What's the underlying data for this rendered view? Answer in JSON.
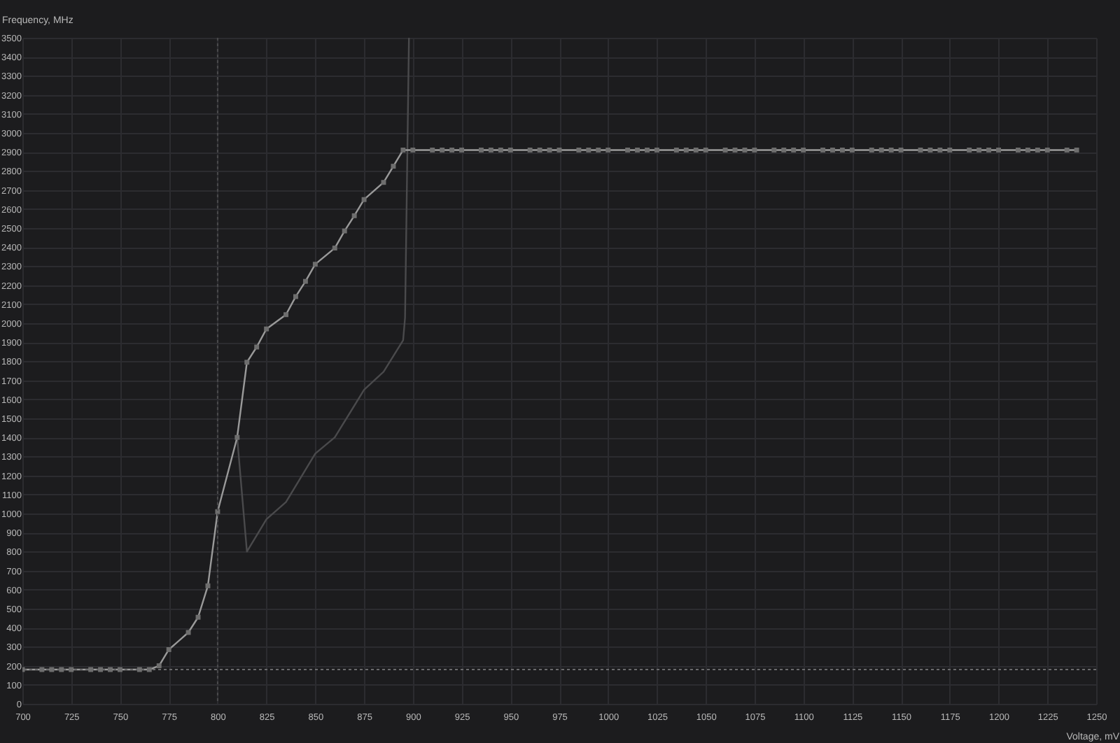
{
  "chart_data": {
    "type": "line",
    "xlabel": "Voltage, mV",
    "ylabel": "Frequency, MHz",
    "xlim": [
      700,
      1250
    ],
    "ylim": [
      0,
      3500
    ],
    "xticks": [
      700,
      725,
      750,
      775,
      800,
      825,
      850,
      875,
      900,
      925,
      950,
      975,
      1000,
      1025,
      1050,
      1075,
      1100,
      1125,
      1150,
      1175,
      1200,
      1225,
      1250
    ],
    "yticks": [
      0,
      100,
      200,
      300,
      400,
      500,
      600,
      700,
      800,
      900,
      1000,
      1100,
      1200,
      1300,
      1400,
      1500,
      1600,
      1700,
      1800,
      1900,
      2000,
      2100,
      2200,
      2300,
      2400,
      2500,
      2600,
      2700,
      2800,
      2900,
      3000,
      3100,
      3200,
      3300,
      3400,
      3500
    ],
    "grid": true,
    "marker": "square",
    "line_style": "solid",
    "series": [
      {
        "color": "#4a4a4c",
        "marker": "none",
        "x": [
          810,
          815,
          825,
          835,
          850,
          860,
          875,
          885,
          895,
          896,
          898
        ],
        "values": [
          1400,
          800,
          970,
          1060,
          1315,
          1400,
          1650,
          1745,
          1910,
          2030,
          3500
        ]
      },
      {
        "color": "#9a9a9a",
        "x": [
          700,
          710,
          715,
          720,
          725,
          735,
          740,
          745,
          750,
          760,
          765,
          770,
          775,
          785,
          790,
          795,
          800,
          810,
          815,
          820,
          825,
          835,
          840,
          845,
          850,
          860,
          865,
          870,
          875,
          885,
          890,
          895,
          900,
          910,
          915,
          920,
          925,
          935,
          940,
          945,
          950,
          960,
          965,
          970,
          975,
          985,
          990,
          995,
          1000,
          1010,
          1015,
          1020,
          1025,
          1035,
          1040,
          1045,
          1050,
          1060,
          1065,
          1070,
          1075,
          1085,
          1090,
          1095,
          1100,
          1110,
          1115,
          1120,
          1125,
          1135,
          1140,
          1145,
          1150,
          1160,
          1165,
          1170,
          1175,
          1185,
          1190,
          1195,
          1200,
          1210,
          1215,
          1220,
          1225,
          1235,
          1240
        ],
        "values": [
          180,
          180,
          180,
          180,
          180,
          180,
          180,
          180,
          180,
          180,
          180,
          200,
          285,
          375,
          455,
          620,
          1010,
          1400,
          1795,
          1875,
          1970,
          2045,
          2140,
          2220,
          2310,
          2395,
          2485,
          2565,
          2650,
          2740,
          2825,
          2910,
          2910,
          2910,
          2910,
          2910,
          2910,
          2910,
          2910,
          2910,
          2910,
          2910,
          2910,
          2910,
          2910,
          2910,
          2910,
          2910,
          2910,
          2910,
          2910,
          2910,
          2910,
          2910,
          2910,
          2910,
          2910,
          2910,
          2910,
          2910,
          2910,
          2910,
          2910,
          2910,
          2910,
          2910,
          2910,
          2910,
          2910,
          2910,
          2910,
          2910,
          2910,
          2910,
          2910,
          2910,
          2910,
          2910,
          2910,
          2910,
          2910,
          2910,
          2910,
          2910,
          2910,
          2910,
          2910
        ]
      }
    ],
    "ref_lines": [
      {
        "axis": "y",
        "value": 180,
        "line_style": "dotted",
        "color": "#6a6a6c"
      },
      {
        "axis": "x",
        "value": 800,
        "line_style": "dotted",
        "color": "#4a4a4c"
      }
    ]
  }
}
